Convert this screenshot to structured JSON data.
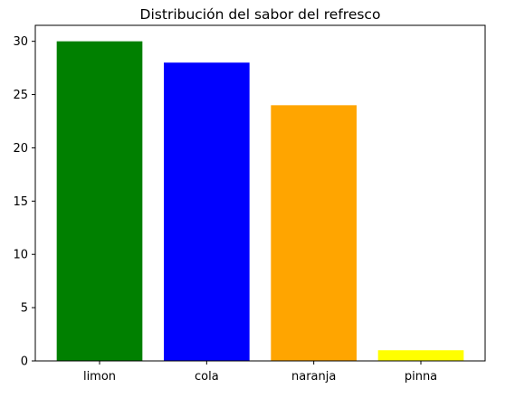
{
  "chart_data": {
    "type": "bar",
    "title": "Distribución del sabor del refresco",
    "xlabel": "",
    "ylabel": "",
    "categories": [
      "limon",
      "cola",
      "naranja",
      "pinna"
    ],
    "values": [
      30,
      28,
      24,
      1
    ],
    "colors": [
      "#008000",
      "#0000ff",
      "#ffa500",
      "#ffff00"
    ],
    "ylim": [
      0,
      31.5
    ],
    "yticks": [
      0,
      5,
      10,
      15,
      20,
      25,
      30
    ],
    "grid": false,
    "legend": "none"
  }
}
